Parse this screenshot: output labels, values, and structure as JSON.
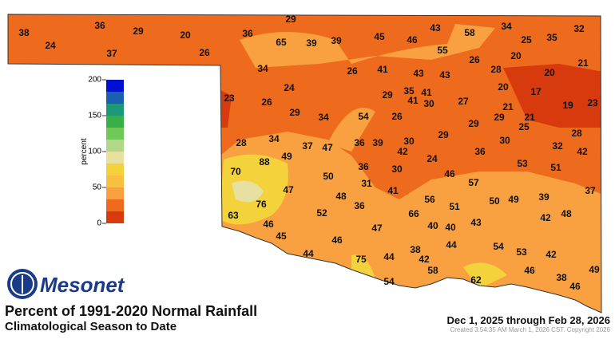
{
  "title": "Percent of 1991-2020 Normal Rainfall",
  "subtitle": "Climatological Season to Date",
  "date_range": "Dec 1, 2025 through Feb 28, 2026",
  "created": "Created 3:54:35 AM March 1, 2026 CST. Copyright 2026",
  "logo": "Mesonet",
  "legend": {
    "label": "percent",
    "ticks": [
      0,
      50,
      100,
      150,
      200
    ],
    "range": [
      0,
      200
    ]
  },
  "stations": [
    29,
    38,
    36,
    29,
    20,
    36,
    65,
    39,
    39,
    45,
    46,
    43,
    58,
    34,
    25,
    35,
    32,
    24,
    37,
    26,
    55,
    26,
    20,
    21,
    34,
    26,
    41,
    43,
    43,
    28,
    20,
    24,
    29,
    35,
    41,
    20,
    17,
    23,
    26,
    41,
    30,
    27,
    21,
    19,
    23,
    29,
    34,
    54,
    26,
    29,
    29,
    21,
    25,
    28,
    34,
    37,
    47,
    36,
    39,
    30,
    29,
    30,
    32,
    28,
    42,
    49,
    88,
    42,
    24,
    36,
    53,
    51,
    70,
    50,
    36,
    30,
    46,
    31,
    57,
    47,
    41,
    37,
    48,
    56,
    50,
    49,
    39,
    76,
    36,
    51,
    48,
    63,
    52,
    66,
    42,
    46,
    40,
    40,
    43,
    47,
    45,
    46,
    44,
    54,
    44,
    38,
    53,
    42,
    75,
    44,
    42,
    49,
    58,
    46,
    38,
    54,
    62,
    46
  ]
}
